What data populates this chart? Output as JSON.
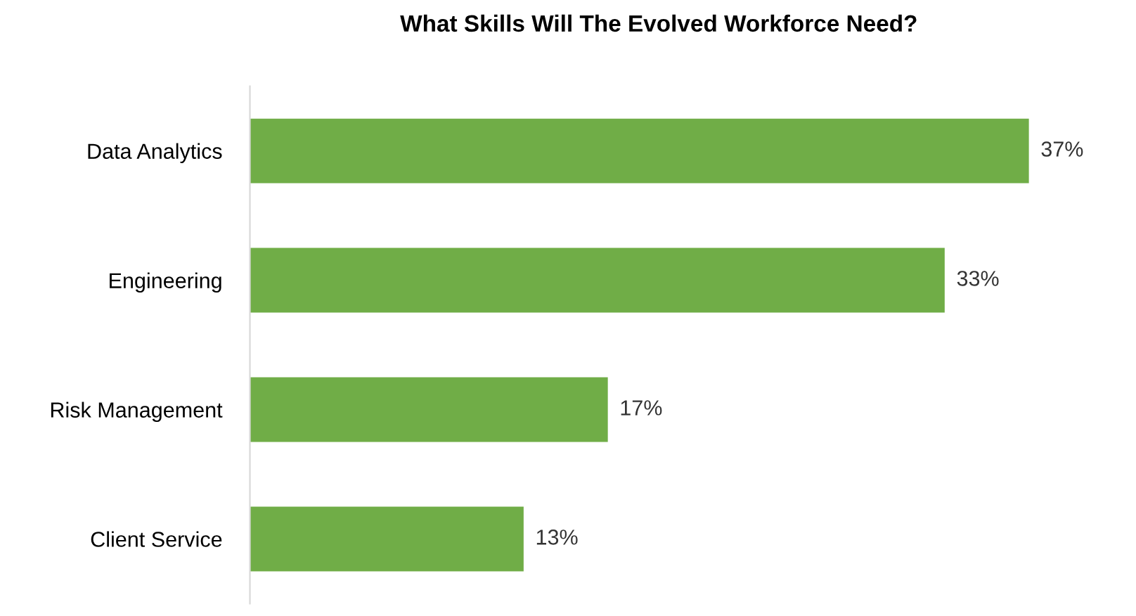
{
  "chart_data": {
    "type": "bar",
    "orientation": "horizontal",
    "title": "What Skills Will The Evolved Workforce Need?",
    "categories": [
      "Data Analytics",
      "Engineering",
      "Risk Management",
      "Client Service"
    ],
    "series": [
      {
        "color": "#70ad47",
        "values": [
          37,
          33,
          17,
          13
        ],
        "value_labels": [
          "37%",
          "33%",
          "17%",
          "13%"
        ]
      }
    ],
    "grid": false,
    "legend": false
  }
}
